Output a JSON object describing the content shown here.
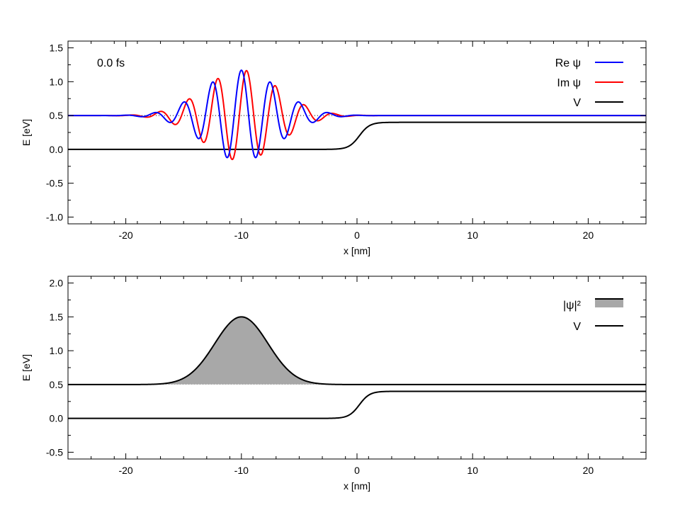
{
  "colors": {
    "re": "#0000ff",
    "im": "#ff0000",
    "potential": "#000000",
    "fill": "#a8a8a8"
  },
  "chart_data": [
    {
      "type": "line",
      "annotation": "0.0 fs",
      "xlabel": "x [nm]",
      "ylabel": "E [eV]",
      "xlim": [
        -25,
        25
      ],
      "ylim": [
        -1.1,
        1.6
      ],
      "x_ticks": [
        -20,
        -10,
        0,
        10,
        20
      ],
      "x_tick_labels": [
        "-20",
        "-10",
        "0",
        "10",
        "20"
      ],
      "y_ticks": [
        -1.0,
        -0.5,
        0.0,
        0.5,
        1.0,
        1.5
      ],
      "y_tick_labels": [
        "-1.0",
        "-0.5",
        "0.0",
        "0.5",
        "1.0",
        "1.5"
      ],
      "grid": false,
      "legend_position": "top-right",
      "series": [
        {
          "name": "Re ψ",
          "color": "#0000ff",
          "x": [
            -25,
            -19,
            -18,
            -17,
            -16,
            -15,
            -14,
            -13,
            -12,
            -11,
            -10,
            -9,
            -8,
            -7,
            -6,
            -5,
            -4,
            -3,
            -2,
            25
          ],
          "values": [
            0.5,
            0.49,
            0.53,
            0.45,
            0.57,
            0.36,
            0.74,
            0.07,
            1.05,
            -0.14,
            1.17,
            -0.12,
            1.04,
            0.13,
            0.72,
            0.38,
            0.57,
            0.45,
            0.5,
            0.5
          ]
        },
        {
          "name": "Im ψ",
          "color": "#ff0000",
          "x": [
            -25,
            -19,
            -18,
            -17,
            -16,
            -15,
            -14,
            -13,
            -12,
            -11,
            -10,
            -9,
            -8,
            -7,
            -6,
            -5,
            -4,
            -3,
            -2,
            25
          ],
          "values": [
            0.5,
            0.51,
            0.48,
            0.55,
            0.42,
            0.66,
            0.28,
            0.87,
            0.0,
            1.1,
            -0.17,
            1.12,
            0.03,
            0.92,
            0.24,
            0.69,
            0.43,
            0.54,
            0.49,
            0.5
          ]
        },
        {
          "name": "V",
          "color": "#000000",
          "x": [
            -25,
            -3,
            -1,
            0,
            1,
            2,
            3,
            25
          ],
          "values": [
            0.0,
            0.0,
            0.03,
            0.2,
            0.37,
            0.4,
            0.4,
            0.4
          ]
        }
      ],
      "reference_line": {
        "style": "dotted",
        "value": 0.5
      }
    },
    {
      "type": "area",
      "xlabel": "x [nm]",
      "ylabel": "E [eV]",
      "xlim": [
        -25,
        25
      ],
      "ylim": [
        -0.6,
        2.1
      ],
      "x_ticks": [
        -20,
        -10,
        0,
        10,
        20
      ],
      "x_tick_labels": [
        "-20",
        "-10",
        "0",
        "10",
        "20"
      ],
      "y_ticks": [
        -0.5,
        0.0,
        0.5,
        1.0,
        1.5,
        2.0
      ],
      "y_tick_labels": [
        "-0.5",
        "0.0",
        "0.5",
        "1.0",
        "1.5",
        "2.0"
      ],
      "grid": false,
      "legend_position": "top-right",
      "series": [
        {
          "name": "|ψ|²",
          "color": "#000000",
          "fill": "#a8a8a8",
          "x": [
            -25,
            -18,
            -16,
            -14,
            -13,
            -12,
            -11,
            -10,
            -9,
            -8,
            -7,
            -6,
            -4,
            -2,
            25
          ],
          "values": [
            0.5,
            0.502,
            0.52,
            0.64,
            0.8,
            1.05,
            1.35,
            1.5,
            1.35,
            1.05,
            0.8,
            0.64,
            0.52,
            0.502,
            0.5
          ]
        },
        {
          "name": "V",
          "color": "#000000",
          "x": [
            -25,
            -3,
            -1,
            0,
            1,
            2,
            3,
            25
          ],
          "values": [
            0.0,
            0.0,
            0.03,
            0.2,
            0.37,
            0.4,
            0.4,
            0.4
          ]
        }
      ]
    }
  ]
}
